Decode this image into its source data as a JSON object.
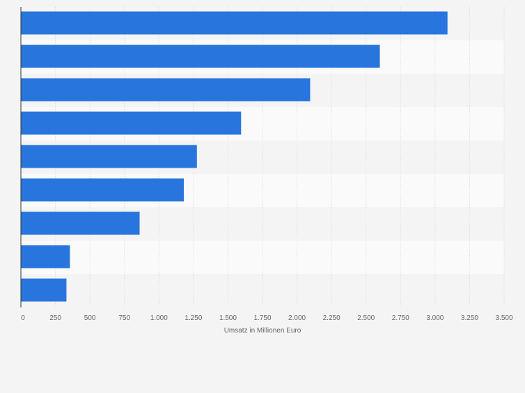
{
  "chart_data": {
    "type": "bar",
    "orientation": "horizontal",
    "title": "",
    "xlabel": "Umsatz in Millionen Euro",
    "ylabel": "",
    "categories": [
      "",
      "",
      "",
      "",
      "",
      "",
      "",
      "",
      ""
    ],
    "values": [
      3090,
      2600,
      2095,
      1595,
      1275,
      1180,
      860,
      355,
      330
    ],
    "xlim": [
      0,
      3500
    ],
    "xticks": [
      0,
      250,
      500,
      750,
      1000,
      1250,
      1500,
      1750,
      2000,
      2250,
      2500,
      2750,
      3000,
      3250,
      3500
    ],
    "xtick_labels": [
      "0",
      "250",
      "500",
      "750",
      "1.000",
      "1.250",
      "1.500",
      "1.750",
      "2.000",
      "2.250",
      "2.500",
      "2.750",
      "3.000",
      "3.250",
      "3.500"
    ],
    "grid": true,
    "legend": "none",
    "colors": {
      "bar": "#2876dd",
      "band_light": "#fafafa",
      "band_dark": "#f4f4f4",
      "grid": "#d8d8d8",
      "axis": "#333333",
      "tick_text": "#666666"
    }
  }
}
